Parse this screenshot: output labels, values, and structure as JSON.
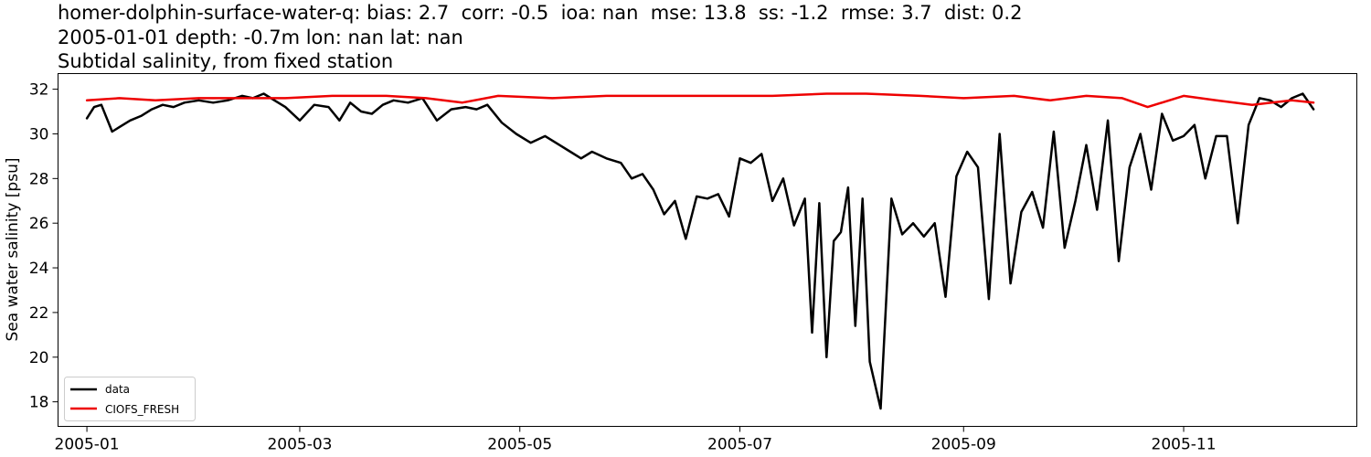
{
  "title_lines": [
    "homer-dolphin-surface-water-q: bias: 2.7  corr: -0.5  ioa: nan  mse: 13.8  ss: -1.2  rmse: 3.7  dist: 0.2",
    "2005-01-01 depth: -0.7m lon: nan lat: nan",
    "Subtidal salinity, from fixed station"
  ],
  "chart_data": {
    "type": "line",
    "title": "homer-dolphin-surface-water-q: bias: 2.7  corr: -0.5  ioa: nan  mse: 13.8  ss: -1.2  rmse: 3.7  dist: 0.2\n2005-01-01 depth: -0.7m lon: nan lat: nan\nSubtidal salinity, from fixed station",
    "xlabel": "",
    "ylabel": "Sea water salinity [psu]",
    "x_axis_type": "date",
    "xlim": [
      "2004-12-24",
      "2005-12-19"
    ],
    "ylim": [
      16.9,
      32.7
    ],
    "xticks": [
      "2005-01-01",
      "2005-03-01",
      "2005-05-01",
      "2005-07-01",
      "2005-09-01",
      "2005-11-01"
    ],
    "xtick_labels": [
      "2005-01",
      "2005-03",
      "2005-05",
      "2005-07",
      "2005-09",
      "2005-11"
    ],
    "yticks": [
      18,
      20,
      22,
      24,
      26,
      28,
      30,
      32
    ],
    "ytick_labels": [
      "18",
      "20",
      "22",
      "24",
      "26",
      "28",
      "30",
      "32"
    ],
    "grid": false,
    "legend_position": "lower-left",
    "series": [
      {
        "name": "data",
        "color": "#000000",
        "x": [
          "2005-01-01",
          "2005-01-03",
          "2005-01-05",
          "2005-01-08",
          "2005-01-10",
          "2005-01-13",
          "2005-01-16",
          "2005-01-19",
          "2005-01-22",
          "2005-01-25",
          "2005-01-28",
          "2005-02-01",
          "2005-02-05",
          "2005-02-09",
          "2005-02-13",
          "2005-02-16",
          "2005-02-19",
          "2005-02-22",
          "2005-02-25",
          "2005-03-01",
          "2005-03-05",
          "2005-03-09",
          "2005-03-12",
          "2005-03-15",
          "2005-03-18",
          "2005-03-21",
          "2005-03-24",
          "2005-03-27",
          "2005-03-31",
          "2005-04-04",
          "2005-04-08",
          "2005-04-12",
          "2005-04-16",
          "2005-04-19",
          "2005-04-22",
          "2005-04-26",
          "2005-04-30",
          "2005-05-04",
          "2005-05-08",
          "2005-05-12",
          "2005-05-15",
          "2005-05-18",
          "2005-05-21",
          "2005-05-25",
          "2005-05-29",
          "2005-06-01",
          "2005-06-04",
          "2005-06-07",
          "2005-06-10",
          "2005-06-13",
          "2005-06-16",
          "2005-06-19",
          "2005-06-22",
          "2005-06-25",
          "2005-06-28",
          "2005-07-01",
          "2005-07-04",
          "2005-07-07",
          "2005-07-10",
          "2005-07-13",
          "2005-07-16",
          "2005-07-19",
          "2005-07-21",
          "2005-07-23",
          "2005-07-25",
          "2005-07-27",
          "2005-07-29",
          "2005-07-31",
          "2005-08-02",
          "2005-08-04",
          "2005-08-06",
          "2005-08-09",
          "2005-08-12",
          "2005-08-15",
          "2005-08-18",
          "2005-08-21",
          "2005-08-24",
          "2005-08-27",
          "2005-08-30",
          "2005-09-02",
          "2005-09-05",
          "2005-09-08",
          "2005-09-11",
          "2005-09-14",
          "2005-09-17",
          "2005-09-20",
          "2005-09-23",
          "2005-09-26",
          "2005-09-29",
          "2005-10-02",
          "2005-10-05",
          "2005-10-08",
          "2005-10-11",
          "2005-10-14",
          "2005-10-17",
          "2005-10-20",
          "2005-10-23",
          "2005-10-26",
          "2005-10-29",
          "2005-11-01",
          "2005-11-04",
          "2005-11-07",
          "2005-11-10",
          "2005-11-13",
          "2005-11-16",
          "2005-11-19",
          "2005-11-22",
          "2005-11-25",
          "2005-11-28",
          "2005-12-01",
          "2005-12-04",
          "2005-12-07"
        ],
        "y": [
          30.7,
          31.2,
          31.3,
          30.1,
          30.3,
          30.6,
          30.8,
          31.1,
          31.3,
          31.2,
          31.4,
          31.5,
          31.4,
          31.5,
          31.7,
          31.6,
          31.8,
          31.5,
          31.2,
          30.6,
          31.3,
          31.2,
          30.6,
          31.4,
          31.0,
          30.9,
          31.3,
          31.5,
          31.4,
          31.6,
          30.6,
          31.1,
          31.2,
          31.1,
          31.3,
          30.5,
          30.0,
          29.6,
          29.9,
          29.5,
          29.2,
          28.9,
          29.2,
          28.9,
          28.7,
          28.0,
          28.2,
          27.5,
          26.4,
          27.0,
          25.3,
          27.2,
          27.1,
          27.3,
          26.3,
          28.9,
          28.7,
          29.1,
          27.0,
          28.0,
          25.9,
          27.1,
          21.1,
          26.9,
          20.0,
          25.2,
          25.6,
          27.6,
          21.4,
          27.1,
          19.8,
          17.7,
          27.1,
          25.5,
          26.0,
          25.4,
          26.0,
          22.7,
          28.1,
          29.2,
          28.5,
          22.6,
          30.0,
          23.3,
          26.5,
          27.4,
          25.8,
          30.1,
          24.9,
          27.0,
          29.5,
          26.6,
          30.6,
          24.3,
          28.5,
          30.0,
          27.5,
          30.9,
          29.7,
          29.9,
          30.4,
          28.0,
          29.9,
          29.9,
          26.0,
          30.4,
          31.6,
          31.5,
          31.2,
          31.6,
          31.8,
          31.1
        ],
        "note": "values approximated from plot"
      },
      {
        "name": "CIOFS_FRESH",
        "color": "#ee0000",
        "x": [
          "2005-01-01",
          "2005-01-10",
          "2005-01-20",
          "2005-02-01",
          "2005-02-12",
          "2005-02-25",
          "2005-03-10",
          "2005-03-25",
          "2005-04-05",
          "2005-04-15",
          "2005-04-25",
          "2005-05-10",
          "2005-05-25",
          "2005-06-10",
          "2005-06-25",
          "2005-07-10",
          "2005-07-25",
          "2005-08-05",
          "2005-08-20",
          "2005-09-01",
          "2005-09-15",
          "2005-09-25",
          "2005-10-05",
          "2005-10-15",
          "2005-10-22",
          "2005-11-01",
          "2005-11-10",
          "2005-11-20",
          "2005-12-01",
          "2005-12-07"
        ],
        "y": [
          31.5,
          31.6,
          31.5,
          31.6,
          31.6,
          31.6,
          31.7,
          31.7,
          31.6,
          31.4,
          31.7,
          31.6,
          31.7,
          31.7,
          31.7,
          31.7,
          31.8,
          31.8,
          31.7,
          31.6,
          31.7,
          31.5,
          31.7,
          31.6,
          31.2,
          31.7,
          31.5,
          31.3,
          31.5,
          31.4
        ],
        "note": "values approximated from plot"
      }
    ]
  }
}
